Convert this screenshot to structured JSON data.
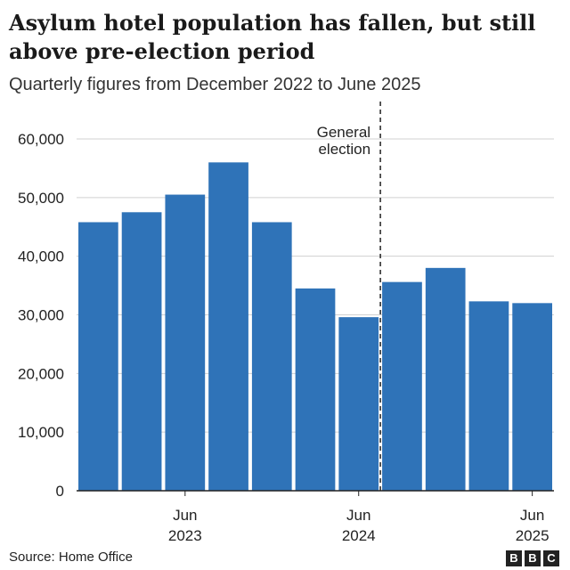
{
  "title": "Asylum hotel population has fallen, but still above pre-election period",
  "subtitle": "Quarterly figures from December 2022 to June 2025",
  "source": "Source: Home Office",
  "logo": {
    "letters": [
      "B",
      "B",
      "C"
    ]
  },
  "colors": {
    "bar": "#2f73b8",
    "text": "#222222",
    "grid": "#d0d0d0"
  },
  "chart_data": {
    "type": "bar",
    "title": "Asylum hotel population has fallen, but still above pre-election period",
    "subtitle": "Quarterly figures from December 2022 to June 2025",
    "categories": [
      "Dec 2022",
      "Mar 2023",
      "Jun 2023",
      "Sep 2023",
      "Dec 2023",
      "Mar 2024",
      "Jun 2024",
      "Sep 2024",
      "Dec 2024",
      "Mar 2025",
      "Jun 2025"
    ],
    "values": [
      45800,
      47500,
      50500,
      56000,
      45800,
      34500,
      29600,
      35600,
      38000,
      32300,
      32000
    ],
    "ylim": [
      0,
      60000
    ],
    "yticks": [
      0,
      10000,
      20000,
      30000,
      40000,
      50000,
      60000
    ],
    "ytick_labels": [
      "0",
      "10,000",
      "20,000",
      "30,000",
      "40,000",
      "50,000",
      "60,000"
    ],
    "xticks": [
      {
        "index": 2,
        "line1": "Jun",
        "line2": "2023"
      },
      {
        "index": 6,
        "line1": "Jun",
        "line2": "2024"
      },
      {
        "index": 10,
        "line1": "Jun",
        "line2": "2025"
      }
    ],
    "annotation": {
      "line1": "General",
      "line2": "election",
      "after_index": 6
    },
    "grid": true,
    "legend": "none"
  }
}
